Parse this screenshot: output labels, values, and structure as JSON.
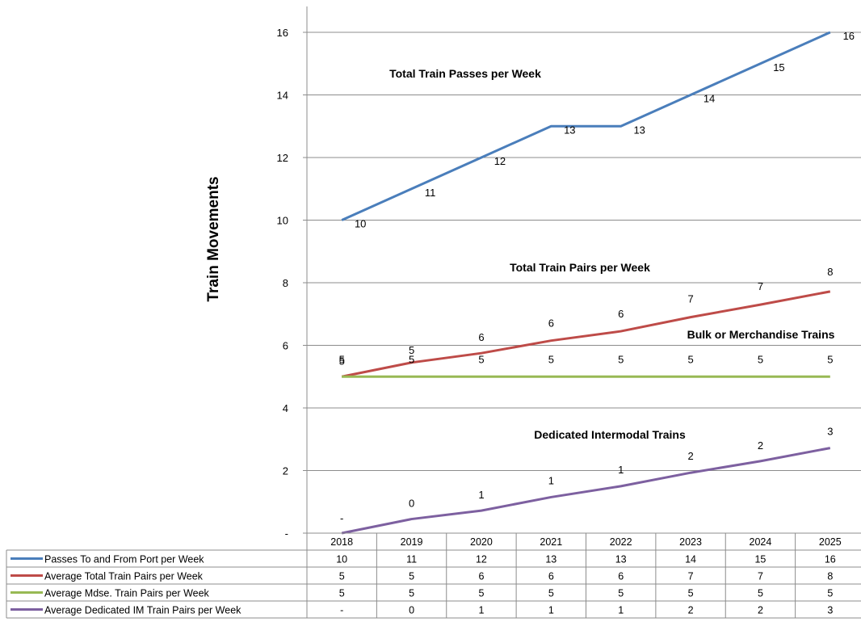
{
  "chart_data": {
    "type": "line",
    "ylabel": "Train Movements",
    "ylim": [
      0,
      16
    ],
    "y_ticks": [
      {
        "value": 0,
        "label": "-"
      },
      {
        "value": 2,
        "label": "2"
      },
      {
        "value": 4,
        "label": "4"
      },
      {
        "value": 6,
        "label": "6"
      },
      {
        "value": 8,
        "label": "8"
      },
      {
        "value": 10,
        "label": "10"
      },
      {
        "value": 12,
        "label": "12"
      },
      {
        "value": 14,
        "label": "14"
      },
      {
        "value": 16,
        "label": "16"
      }
    ],
    "grid": true,
    "legend": "data-table-below",
    "categories": [
      "2018",
      "2019",
      "2020",
      "2021",
      "2022",
      "2023",
      "2024",
      "2025"
    ],
    "series": [
      {
        "name": "Passes To and From Port per Week",
        "color": "#4a7ebb",
        "values": [
          10,
          11,
          12,
          13,
          13,
          14,
          15,
          16
        ],
        "labels": [
          "10",
          "11",
          "12",
          "13",
          "13",
          "14",
          "15",
          "16"
        ]
      },
      {
        "name": "Average Total Train Pairs per Week",
        "color": "#be4b48",
        "values": [
          5,
          5.45,
          5.75,
          6.15,
          6.45,
          6.9,
          7.3,
          7.72
        ],
        "labels": [
          "5",
          "5",
          "6",
          "6",
          "6",
          "7",
          "7",
          "8"
        ]
      },
      {
        "name": "Average Mdse. Train Pairs per Week",
        "color": "#98b954",
        "values": [
          5,
          5,
          5,
          5,
          5,
          5,
          5,
          5
        ],
        "labels": [
          "5",
          "5",
          "5",
          "5",
          "5",
          "5",
          "5",
          "5"
        ]
      },
      {
        "name": "Average Dedicated IM Train Pairs per Week",
        "color": "#7d60a0",
        "values": [
          0,
          0.45,
          0.72,
          1.15,
          1.5,
          1.93,
          2.3,
          2.72
        ],
        "labels": [
          "-",
          "0",
          "1",
          "1",
          "1",
          "2",
          "2",
          "3"
        ]
      }
    ],
    "annotations": [
      "Total Train Passes per Week",
      "Total Train Pairs per Week",
      "Bulk or Merchandise Trains",
      "Dedicated Intermodal Trains"
    ]
  }
}
